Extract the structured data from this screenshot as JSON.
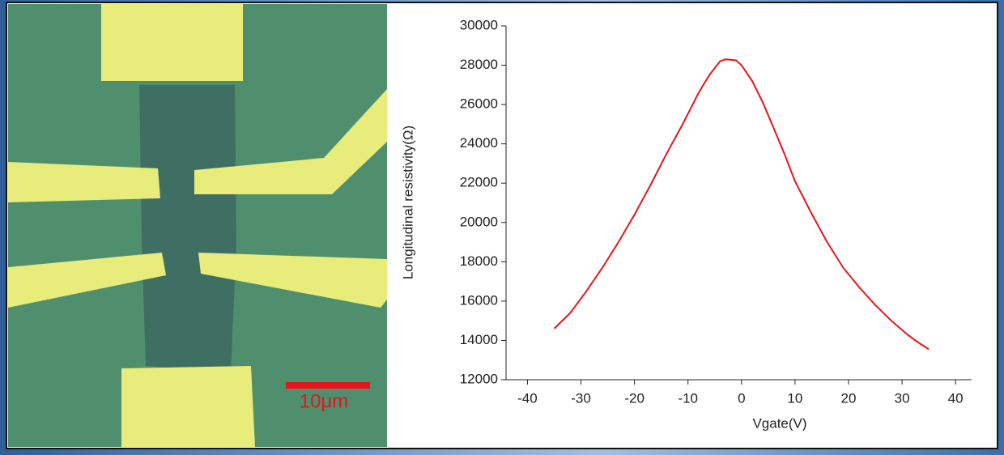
{
  "micrograph": {
    "scale_bar_label": "10μm"
  },
  "chart_data": {
    "type": "line",
    "xlabel": "Vgate(V)",
    "ylabel": "Longitudinal resistivity(Ω)",
    "x": [
      -35,
      -32,
      -29,
      -26,
      -23,
      -20,
      -17,
      -14,
      -11,
      -8,
      -6,
      -4,
      -3,
      -1,
      0,
      2,
      4,
      6,
      8,
      10,
      13,
      16,
      19,
      22,
      25,
      28,
      31,
      33,
      35
    ],
    "series": [
      {
        "color": "#e8141c",
        "values": [
          14600,
          15400,
          16500,
          17700,
          19000,
          20400,
          21900,
          23500,
          25000,
          26600,
          27500,
          28200,
          28300,
          28250,
          28000,
          27200,
          26100,
          24800,
          23500,
          22100,
          20500,
          19000,
          17700,
          16700,
          15800,
          15000,
          14300,
          13900,
          13550
        ]
      }
    ],
    "xlim": [
      -44,
      43
    ],
    "xticks": [
      -40,
      -30,
      -20,
      -10,
      0,
      10,
      20,
      30,
      40
    ],
    "ylim": [
      12000,
      30000
    ],
    "yticks": [
      12000,
      14000,
      16000,
      18000,
      20000,
      22000,
      24000,
      26000,
      28000,
      30000
    ],
    "grid": false
  }
}
